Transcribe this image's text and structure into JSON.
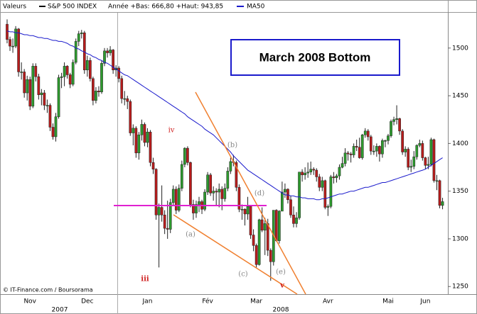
{
  "chart_data": {
    "type": "candlestick",
    "header_label": "Valeurs",
    "series_name": "S&P 500 INDEX",
    "range_note": "Année +Bas: 666,80 +Haut: 943,85",
    "up_color": "#2e9b2e",
    "down_color": "#b81c1c",
    "categories": [
      null,
      null,
      null,
      null,
      null,
      null,
      null,
      null,
      "Nov",
      null,
      null,
      null,
      null,
      null,
      null,
      null,
      null,
      null,
      null,
      null,
      null,
      null,
      null,
      null,
      null,
      null,
      null,
      null,
      "Dec",
      null,
      null,
      null,
      null,
      null,
      null,
      null,
      null,
      null,
      null,
      null,
      null,
      null,
      null,
      null,
      null,
      null,
      null,
      null,
      null,
      "Jan",
      null,
      null,
      null,
      null,
      null,
      null,
      null,
      null,
      null,
      null,
      null,
      null,
      null,
      null,
      null,
      null,
      null,
      null,
      null,
      null,
      "Fév",
      null,
      null,
      null,
      null,
      null,
      null,
      null,
      null,
      null,
      null,
      null,
      null,
      null,
      null,
      null,
      null,
      "Mar",
      null,
      null,
      null,
      null,
      null,
      null,
      null,
      null,
      null,
      null,
      null,
      null,
      null,
      null,
      null,
      null,
      null,
      null,
      null,
      null,
      null,
      null,
      null,
      null,
      "Avr",
      null,
      null,
      null,
      null,
      null,
      null,
      null,
      null,
      null,
      null,
      null,
      null,
      null,
      null,
      null,
      null,
      null,
      null,
      null,
      null,
      "Mai",
      null,
      null,
      null,
      null,
      null,
      null,
      null,
      null,
      null,
      null,
      null,
      null,
      "Jun",
      null,
      null,
      null,
      null,
      null,
      null
    ],
    "values": [
      [
        1525,
        1530,
        1505,
        1509
      ],
      [
        1509,
        1512,
        1497,
        1502
      ],
      [
        1502,
        1510,
        1495,
        1502
      ],
      [
        1502,
        1523,
        1500,
        1520
      ],
      [
        1520,
        1521,
        1470,
        1475
      ],
      [
        1475,
        1485,
        1467,
        1475
      ],
      [
        1475,
        1478,
        1448,
        1453
      ],
      [
        1453,
        1471,
        1445,
        1467
      ],
      [
        1467,
        1470,
        1435,
        1439
      ],
      [
        1439,
        1484,
        1437,
        1481
      ],
      [
        1481,
        1484,
        1465,
        1470
      ],
      [
        1470,
        1473,
        1446,
        1451
      ],
      [
        1451,
        1457,
        1440,
        1453
      ],
      [
        1453,
        1456,
        1435,
        1440
      ],
      [
        1440,
        1446,
        1432,
        1440
      ],
      [
        1440,
        1442,
        1413,
        1417
      ],
      [
        1417,
        1421,
        1404,
        1407
      ],
      [
        1407,
        1432,
        1402,
        1428
      ],
      [
        1428,
        1472,
        1426,
        1469
      ],
      [
        1469,
        1474,
        1458,
        1470
      ],
      [
        1470,
        1485,
        1460,
        1481
      ],
      [
        1481,
        1482,
        1468,
        1472
      ],
      [
        1472,
        1474,
        1458,
        1462
      ],
      [
        1462,
        1488,
        1460,
        1485
      ],
      [
        1485,
        1510,
        1483,
        1507
      ],
      [
        1507,
        1518,
        1502,
        1515
      ],
      [
        1515,
        1519,
        1510,
        1516
      ],
      [
        1516,
        1518,
        1473,
        1477
      ],
      [
        1477,
        1492,
        1470,
        1487
      ],
      [
        1487,
        1490,
        1465,
        1468
      ],
      [
        1468,
        1470,
        1440,
        1445
      ],
      [
        1445,
        1459,
        1442,
        1455
      ],
      [
        1455,
        1460,
        1449,
        1454
      ],
      [
        1454,
        1487,
        1452,
        1484
      ],
      [
        1484,
        1500,
        1481,
        1497
      ],
      [
        1497,
        1500,
        1490,
        1495
      ],
      [
        1495,
        1502,
        1492,
        1498
      ],
      [
        1498,
        1499,
        1473,
        1477
      ],
      [
        1477,
        1482,
        1470,
        1479
      ],
      [
        1479,
        1481,
        1464,
        1468
      ],
      [
        1468,
        1471,
        1442,
        1447
      ],
      [
        1447,
        1455,
        1440,
        1447
      ],
      [
        1447,
        1450,
        1436,
        1444
      ],
      [
        1444,
        1446,
        1408,
        1411
      ],
      [
        1411,
        1420,
        1398,
        1416
      ],
      [
        1416,
        1418,
        1385,
        1390
      ],
      [
        1390,
        1412,
        1383,
        1409
      ],
      [
        1409,
        1425,
        1403,
        1420
      ],
      [
        1420,
        1422,
        1397,
        1401
      ],
      [
        1401,
        1416,
        1396,
        1412
      ],
      [
        1412,
        1414,
        1376,
        1380
      ],
      [
        1380,
        1385,
        1368,
        1373
      ],
      [
        1373,
        1374,
        1320,
        1325
      ],
      [
        1325,
        1337,
        1270,
        1333
      ],
      [
        1333,
        1356,
        1318,
        1325
      ],
      [
        1325,
        1330,
        1305,
        1311
      ],
      [
        1311,
        1340,
        1300,
        1310
      ],
      [
        1310,
        1342,
        1306,
        1338
      ],
      [
        1338,
        1356,
        1335,
        1352
      ],
      [
        1352,
        1355,
        1326,
        1330
      ],
      [
        1330,
        1357,
        1328,
        1353
      ],
      [
        1353,
        1382,
        1350,
        1378
      ],
      [
        1378,
        1396,
        1375,
        1395
      ],
      [
        1395,
        1397,
        1377,
        1380
      ],
      [
        1380,
        1381,
        1333,
        1336
      ],
      [
        1336,
        1341,
        1320,
        1327
      ],
      [
        1327,
        1340,
        1322,
        1336
      ],
      [
        1336,
        1344,
        1328,
        1339
      ],
      [
        1339,
        1341,
        1326,
        1331
      ],
      [
        1331,
        1352,
        1329,
        1349
      ],
      [
        1349,
        1370,
        1346,
        1367
      ],
      [
        1367,
        1369,
        1345,
        1348
      ],
      [
        1348,
        1355,
        1340,
        1350
      ],
      [
        1350,
        1353,
        1335,
        1349
      ],
      [
        1349,
        1358,
        1333,
        1352
      ],
      [
        1352,
        1355,
        1330,
        1342
      ],
      [
        1342,
        1358,
        1339,
        1353
      ],
      [
        1353,
        1375,
        1350,
        1371
      ],
      [
        1371,
        1385,
        1368,
        1381
      ],
      [
        1381,
        1388,
        1376,
        1380
      ],
      [
        1380,
        1382,
        1350,
        1354
      ],
      [
        1354,
        1357,
        1328,
        1331
      ],
      [
        1331,
        1336,
        1320,
        1331
      ],
      [
        1331,
        1332,
        1314,
        1326
      ],
      [
        1326,
        1344,
        1320,
        1334
      ],
      [
        1334,
        1335,
        1300,
        1304
      ],
      [
        1304,
        1310,
        1287,
        1293
      ],
      [
        1293,
        1295,
        1270,
        1273
      ],
      [
        1273,
        1321,
        1272,
        1320
      ],
      [
        1320,
        1333,
        1307,
        1309
      ],
      [
        1309,
        1322,
        1283,
        1316
      ],
      [
        1316,
        1321,
        1282,
        1288
      ],
      [
        1288,
        1290,
        1256,
        1276
      ],
      [
        1276,
        1330,
        1272,
        1330
      ],
      [
        1330,
        1331,
        1297,
        1298
      ],
      [
        1298,
        1330,
        1295,
        1329
      ],
      [
        1329,
        1360,
        1329,
        1349
      ],
      [
        1349,
        1358,
        1343,
        1352
      ],
      [
        1352,
        1353,
        1337,
        1341
      ],
      [
        1341,
        1345,
        1322,
        1325
      ],
      [
        1325,
        1334,
        1312,
        1316
      ],
      [
        1316,
        1328,
        1312,
        1322
      ],
      [
        1322,
        1370,
        1320,
        1370
      ],
      [
        1370,
        1373,
        1360,
        1367
      ],
      [
        1367,
        1375,
        1362,
        1369
      ],
      [
        1369,
        1380,
        1364,
        1370
      ],
      [
        1370,
        1381,
        1367,
        1373
      ],
      [
        1373,
        1375,
        1367,
        1372
      ],
      [
        1372,
        1374,
        1360,
        1365
      ],
      [
        1365,
        1368,
        1350,
        1354
      ],
      [
        1354,
        1365,
        1350,
        1361
      ],
      [
        1361,
        1362,
        1331,
        1333
      ],
      [
        1333,
        1336,
        1324,
        1334
      ],
      [
        1334,
        1367,
        1332,
        1365
      ],
      [
        1365,
        1370,
        1358,
        1364
      ],
      [
        1364,
        1368,
        1359,
        1366
      ],
      [
        1366,
        1378,
        1362,
        1375
      ],
      [
        1375,
        1386,
        1374,
        1379
      ],
      [
        1379,
        1395,
        1376,
        1390
      ],
      [
        1390,
        1392,
        1382,
        1389
      ],
      [
        1389,
        1391,
        1380,
        1388
      ],
      [
        1388,
        1400,
        1385,
        1397
      ],
      [
        1397,
        1404,
        1392,
        1396
      ],
      [
        1396,
        1406,
        1384,
        1385
      ],
      [
        1385,
        1410,
        1383,
        1409
      ],
      [
        1409,
        1416,
        1406,
        1413
      ],
      [
        1413,
        1415,
        1403,
        1407
      ],
      [
        1407,
        1409,
        1388,
        1392
      ],
      [
        1392,
        1398,
        1388,
        1392
      ],
      [
        1392,
        1400,
        1386,
        1397
      ],
      [
        1397,
        1398,
        1381,
        1389
      ],
      [
        1389,
        1405,
        1385,
        1403
      ],
      [
        1403,
        1404,
        1396,
        1403
      ],
      [
        1403,
        1410,
        1399,
        1408
      ],
      [
        1408,
        1425,
        1406,
        1423
      ],
      [
        1423,
        1428,
        1419,
        1425
      ],
      [
        1425,
        1440,
        1420,
        1426
      ],
      [
        1426,
        1427,
        1409,
        1413
      ],
      [
        1413,
        1415,
        1388,
        1391
      ],
      [
        1391,
        1397,
        1386,
        1394
      ],
      [
        1394,
        1396,
        1372,
        1375
      ],
      [
        1375,
        1383,
        1370,
        1376
      ],
      [
        1376,
        1392,
        1373,
        1386
      ],
      [
        1386,
        1399,
        1383,
        1398
      ],
      [
        1398,
        1404,
        1396,
        1400
      ],
      [
        1400,
        1403,
        1382,
        1385
      ],
      [
        1385,
        1386,
        1373,
        1377
      ],
      [
        1377,
        1386,
        1373,
        1378
      ],
      [
        1378,
        1406,
        1376,
        1404
      ],
      [
        1404,
        1405,
        1359,
        1361
      ],
      [
        1361,
        1367,
        1351,
        1361
      ],
      [
        1361,
        1362,
        1332,
        1335
      ],
      [
        1335,
        1343,
        1331,
        1339
      ]
    ],
    "overlay": {
      "name": "MA50",
      "color": "#1a1acc",
      "values": [
        1518,
        1517,
        1517,
        1516,
        1516,
        1515,
        1514,
        1514,
        1513,
        1513,
        1512,
        1511,
        1511,
        1510,
        1510,
        1509,
        1508,
        1508,
        1507,
        1507,
        1506,
        1505,
        1503,
        1502,
        1500,
        1499,
        1497,
        1496,
        1494,
        1493,
        1491,
        1490,
        1488,
        1487,
        1485,
        1484,
        1482,
        1480,
        1478,
        1476,
        1474,
        1472,
        1471,
        1469,
        1467,
        1465,
        1463,
        1461,
        1459,
        1457,
        1455,
        1453,
        1451,
        1449,
        1447,
        1445,
        1443,
        1441,
        1439,
        1437,
        1435,
        1433,
        1431,
        1428,
        1426,
        1424,
        1422,
        1420,
        1418,
        1415,
        1413,
        1411,
        1409,
        1406,
        1403,
        1400,
        1397,
        1394,
        1391,
        1387,
        1384,
        1381,
        1378,
        1375,
        1372,
        1370,
        1368,
        1366,
        1364,
        1362,
        1360,
        1358,
        1356,
        1354,
        1352,
        1350,
        1348,
        1346,
        1346,
        1345,
        1345,
        1344,
        1344,
        1343,
        1343,
        1342,
        1342,
        1342,
        1341,
        1341,
        1342,
        1342,
        1343,
        1344,
        1345,
        1346,
        1347,
        1347,
        1348,
        1349,
        1350,
        1350,
        1351,
        1352,
        1353,
        1354,
        1354,
        1355,
        1356,
        1357,
        1358,
        1359,
        1359,
        1360,
        1361,
        1362,
        1363,
        1364,
        1365,
        1366,
        1367,
        1368,
        1369,
        1370,
        1371,
        1372,
        1373,
        1375,
        1377,
        1379,
        1381,
        1383,
        1385
      ]
    },
    "ylim": [
      1242,
      1537
    ],
    "yticks": [
      1250,
      1300,
      1350,
      1400,
      1450,
      1500
    ],
    "x_group_labels": [
      "2007",
      "2008"
    ],
    "annotations": {
      "title_box": "March 2008 Bottom",
      "wave_labels": [
        "iv",
        "iii",
        "v",
        "(a)",
        "(b)",
        "(c)",
        "(d)",
        "(e)"
      ]
    },
    "footer": "© IT-Finance.com / Boursorama"
  }
}
